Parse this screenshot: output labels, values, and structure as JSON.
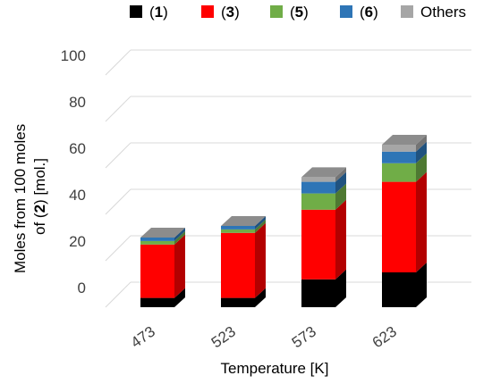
{
  "chart_data": {
    "type": "bar",
    "stacked": true,
    "three_d": true,
    "categories": [
      "473",
      "523",
      "573",
      "623"
    ],
    "series": [
      {
        "name": "(1)",
        "name_prefix": "(",
        "name_bold": "1",
        "name_suffix": ")",
        "color": "#000000",
        "values": [
          4,
          4,
          12,
          15
        ]
      },
      {
        "name": "(3)",
        "name_prefix": "(",
        "name_bold": "3",
        "name_suffix": ")",
        "color": "#ff0000",
        "values": [
          23,
          28,
          30,
          39
        ]
      },
      {
        "name": "(5)",
        "name_prefix": "(",
        "name_bold": "5",
        "name_suffix": ")",
        "color": "#70ad47",
        "values": [
          1.5,
          1.5,
          7,
          8
        ]
      },
      {
        "name": "(6)",
        "name_prefix": "(",
        "name_bold": "6",
        "name_suffix": ")",
        "color": "#2e75b6",
        "values": [
          1.5,
          1.5,
          5,
          5
        ]
      },
      {
        "name": "Others",
        "name_prefix": "Others",
        "name_bold": "",
        "name_suffix": "",
        "color": "#a6a6a6",
        "values": [
          0,
          0,
          2,
          3
        ]
      }
    ],
    "ylim": [
      0,
      100
    ],
    "yticks": [
      0,
      20,
      40,
      60,
      80,
      100
    ],
    "xlabel": "Temperature [K]",
    "ylabel_line1": "Moles from 100 moles",
    "ylabel_line2_prefix": "of (",
    "ylabel_line2_bold": "2",
    "ylabel_line2_suffix": ") [mol.]",
    "grid": true,
    "legend_position": "top"
  }
}
